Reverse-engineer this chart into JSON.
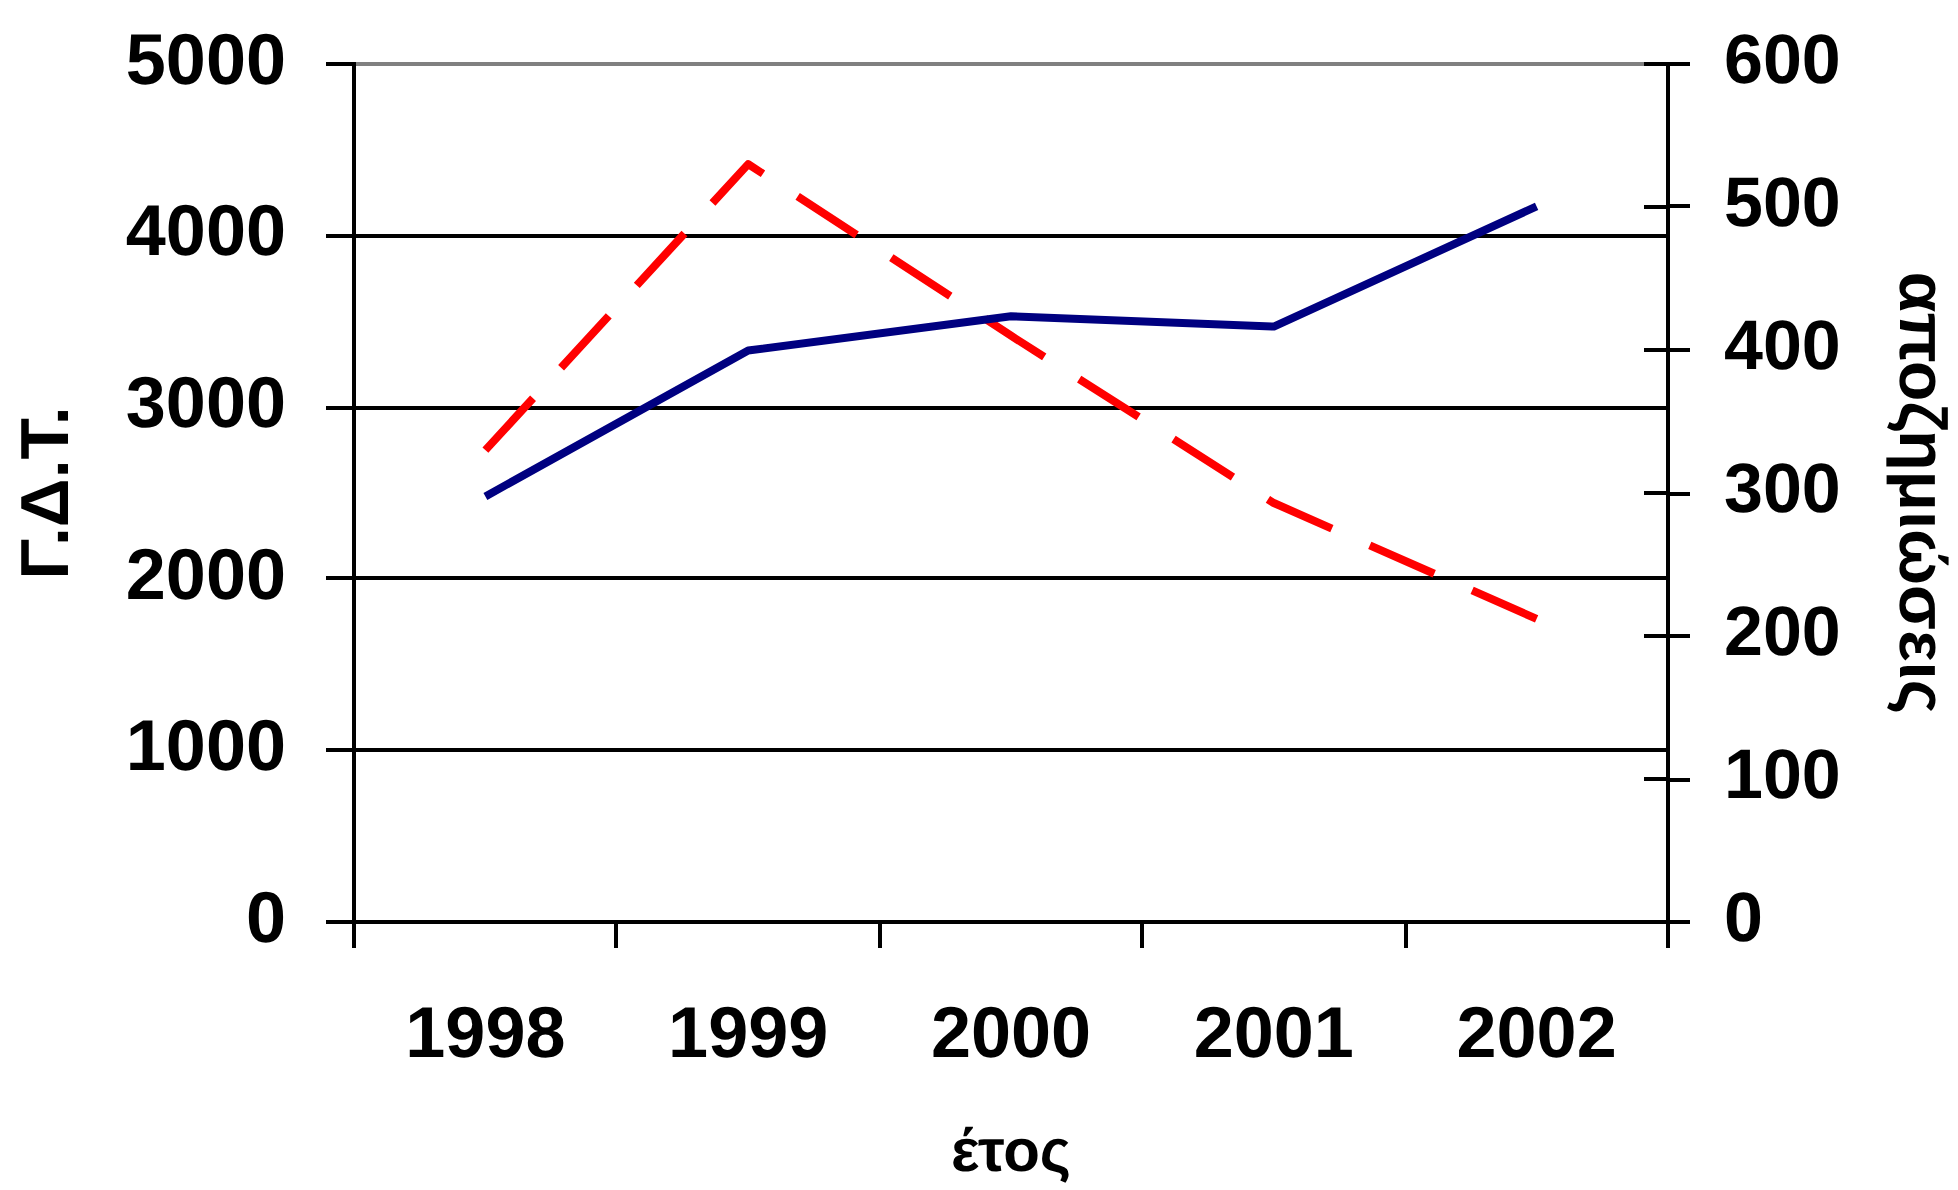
{
  "chart_data": {
    "type": "line",
    "xlabel": "έτος",
    "ylabel": "Γ.Δ.Τ.",
    "y2label": "αποζημιώσεις",
    "categories": [
      "1998",
      "1999",
      "2000",
      "2001",
      "2002"
    ],
    "series": [
      {
        "color": "#000080",
        "line_style": "solid",
        "values": [
          2480,
          3330,
          3530,
          3470,
          4170
        ]
      },
      {
        "color": "#ff0000",
        "axis": "y2",
        "line_style": "dashed",
        "values": [
          330,
          530,
          410,
          293,
          212
        ]
      }
    ],
    "ylim": [
      0,
      5000
    ],
    "yticks": [
      0,
      1000,
      2000,
      3000,
      4000,
      5000
    ],
    "y2lim": [
      0,
      600
    ],
    "y2ticks": [
      0,
      100,
      200,
      300,
      400,
      500,
      600
    ],
    "grid": "y",
    "legend": false,
    "marker": "none"
  }
}
